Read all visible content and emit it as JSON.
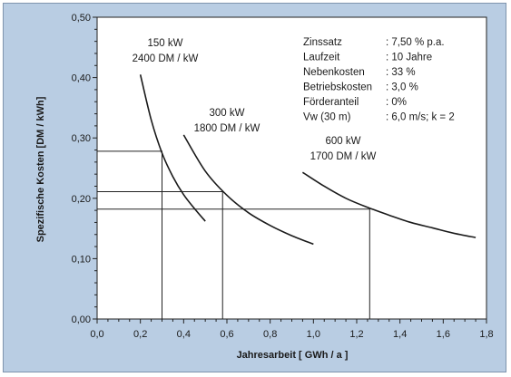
{
  "chart_data": {
    "type": "line",
    "title": "",
    "xlabel": "Jahresarbeit [ GWh / a ]",
    "ylabel": "Spezifische Kosten [DM / kWh]",
    "xlim": [
      0.0,
      1.8
    ],
    "ylim": [
      0.0,
      0.5
    ],
    "x_ticks": [
      "0,0",
      "0,2",
      "0,4",
      "0,6",
      "0,8",
      "1,0",
      "1,2",
      "1,4",
      "1,6",
      "1,8"
    ],
    "y_ticks": [
      "0,00",
      "0,10",
      "0,20",
      "0,30",
      "0,40",
      "0,50"
    ],
    "grid": false,
    "series": [
      {
        "name": "150 kW",
        "label_lines": [
          "150 kW",
          "2400 DM / kW"
        ],
        "x": [
          0.2,
          0.25,
          0.3,
          0.35,
          0.4,
          0.45,
          0.5
        ],
        "y": [
          0.405,
          0.33,
          0.275,
          0.236,
          0.206,
          0.183,
          0.162
        ]
      },
      {
        "name": "300 kW",
        "label_lines": [
          "300 kW",
          "1800 DM / kW"
        ],
        "x": [
          0.4,
          0.5,
          0.6,
          0.7,
          0.8,
          0.9,
          1.0
        ],
        "y": [
          0.305,
          0.245,
          0.205,
          0.176,
          0.155,
          0.138,
          0.124
        ]
      },
      {
        "name": "600 kW",
        "label_lines": [
          "600 kW",
          "1700 DM / kW"
        ],
        "x": [
          0.95,
          1.05,
          1.15,
          1.25,
          1.35,
          1.45,
          1.55,
          1.65,
          1.75
        ],
        "y": [
          0.243,
          0.22,
          0.2,
          0.185,
          0.172,
          0.16,
          0.151,
          0.142,
          0.135
        ]
      }
    ],
    "reference_lines": [
      {
        "x": 0.3,
        "y": 0.278
      },
      {
        "x": 0.58,
        "y": 0.211
      },
      {
        "x": 1.26,
        "y": 0.182
      }
    ],
    "parameters": [
      {
        "label": "Zinssatz",
        "value": ": 7,50 %  p.a."
      },
      {
        "label": "Laufzeit",
        "value": ": 10 Jahre"
      },
      {
        "label": "Nebenkosten",
        "value": ": 33 %"
      },
      {
        "label": "Betriebskosten",
        "value": ": 3,0 %"
      },
      {
        "label": "Förderanteil",
        "value": ": 0%"
      },
      {
        "label": "Vw (30 m)",
        "value": ": 6,0 m/s;  k = 2"
      }
    ]
  }
}
